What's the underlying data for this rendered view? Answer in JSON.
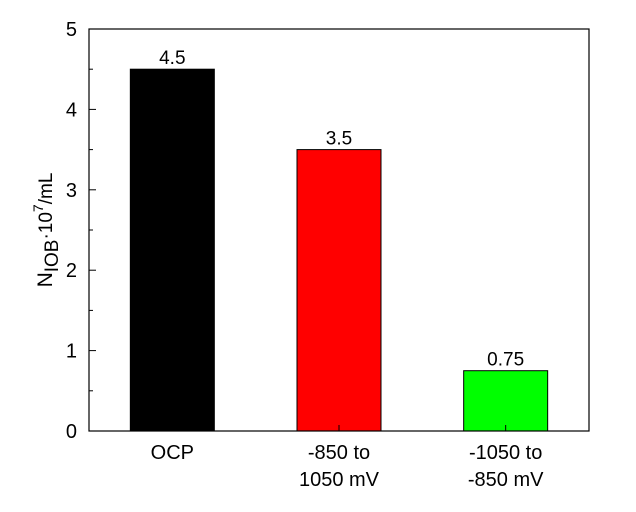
{
  "chart_data": {
    "type": "bar",
    "title": "",
    "xlabel": "",
    "ylabel": {
      "base": "N",
      "subscript": "IOB",
      "multiplier": "·10",
      "superscript": "7",
      "unit": "/mL"
    },
    "categories": [
      {
        "lines": [
          "OCP"
        ]
      },
      {
        "lines": [
          "-850 to",
          "1050 mV"
        ]
      },
      {
        "lines": [
          "-1050 to",
          "-850 mV"
        ]
      }
    ],
    "values": [
      4.5,
      3.5,
      0.75
    ],
    "value_labels": [
      "4.5",
      "3.5",
      "0.75"
    ],
    "colors": [
      "#000000",
      "#ff0000",
      "#00ff00"
    ],
    "ylim": [
      0,
      5
    ],
    "yticks": [
      0,
      1,
      2,
      3,
      4,
      5
    ],
    "ytick_labels": [
      "0",
      "1",
      "2",
      "3",
      "4",
      "5"
    ],
    "grid": false,
    "legend": "none"
  }
}
